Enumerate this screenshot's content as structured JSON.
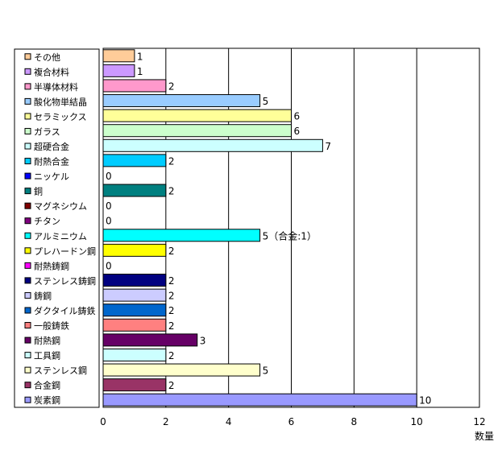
{
  "chart_data": {
    "type": "bar",
    "orientation": "horizontal",
    "categories": [
      "その他",
      "複合材料",
      "半導体材料",
      "酸化物単結晶",
      "セラミックス",
      "ガラス",
      "超硬合金",
      "耐熱合金",
      "ニッケル",
      "銅",
      "マグネシウム",
      "チタン",
      "アルミニウム",
      "プレハードン鋼",
      "耐熱鋳鋼",
      "ステンレス鋳鋼",
      "鋳鋼",
      "ダクタイル鋳鉄",
      "一般鋳鉄",
      "耐熱鋼",
      "工具鋼",
      "ステンレス鋼",
      "合金鋼",
      "炭素鋼"
    ],
    "values": [
      1,
      1,
      2,
      5,
      6,
      6,
      7,
      2,
      0,
      2,
      0,
      0,
      5,
      2,
      0,
      2,
      2,
      2,
      2,
      3,
      2,
      5,
      2,
      10
    ],
    "data_labels": [
      "1",
      "1",
      "2",
      "5",
      "6",
      "6",
      "7",
      "2",
      "0",
      "2",
      "0",
      "0",
      "5（合金:1）",
      "2",
      "0",
      "2",
      "2",
      "2",
      "2",
      "3",
      "2",
      "5",
      "2",
      "10"
    ],
    "colors": [
      "#FFCC99",
      "#CC99FF",
      "#FF99CC",
      "#99CCFF",
      "#FFFF99",
      "#CCFFCC",
      "#CCFFFF",
      "#00CCFF",
      "#0000FF",
      "#008080",
      "#800000",
      "#800080",
      "#00FFFF",
      "#FFFF00",
      "#FF00FF",
      "#000080",
      "#CCCCFF",
      "#0066CC",
      "#FF8080",
      "#660066",
      "#CCFFFF",
      "#FFFFCC",
      "#993366",
      "#9999FF"
    ],
    "xlim": [
      0,
      12
    ],
    "xticks": [
      "0",
      "2",
      "4",
      "6",
      "8",
      "10",
      "12"
    ],
    "xlabel": "数量",
    "grid": true,
    "legend_position": "left"
  }
}
